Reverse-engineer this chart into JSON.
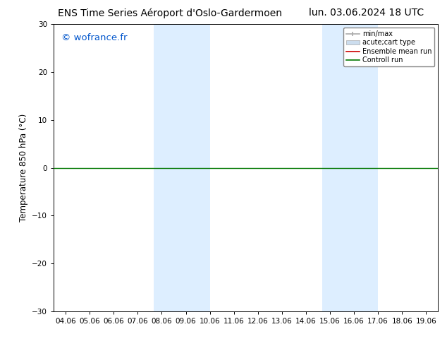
{
  "title_left": "ENS Time Series Aéroport d'Oslo-Gardermoen",
  "title_right": "lun. 03.06.2024 18 UTC",
  "ylabel": "Temperature 850 hPa (°C)",
  "watermark": "© wofrance.fr",
  "watermark_color": "#0055cc",
  "ylim": [
    -30,
    30
  ],
  "yticks": [
    -30,
    -20,
    -10,
    0,
    10,
    20,
    30
  ],
  "xtick_labels": [
    "04.06",
    "05.06",
    "06.06",
    "07.06",
    "08.06",
    "09.06",
    "10.06",
    "11.06",
    "12.06",
    "13.06",
    "14.06",
    "15.06",
    "16.06",
    "17.06",
    "18.06",
    "19.06"
  ],
  "x_numeric": [
    4,
    5,
    6,
    7,
    8,
    9,
    10,
    11,
    12,
    13,
    14,
    15,
    16,
    17,
    18,
    19
  ],
  "x_min": 3.5,
  "x_max": 19.5,
  "shaded_bands": [
    {
      "x_start": 7.67,
      "x_end": 9.0,
      "color": "#ddeeff"
    },
    {
      "x_start": 9.0,
      "x_end": 10.0,
      "color": "#ddeeff"
    },
    {
      "x_start": 14.67,
      "x_end": 16.0,
      "color": "#ddeeff"
    },
    {
      "x_start": 16.0,
      "x_end": 17.0,
      "color": "#ddeeff"
    }
  ],
  "horizontal_line_y": 0,
  "horizontal_line_color": "#007700",
  "background_color": "#ffffff",
  "plot_bg_color": "#ffffff",
  "legend_minmax_color": "#aaaaaa",
  "legend_cart_facecolor": "#ccddee",
  "legend_ens_color": "#cc0000",
  "legend_ctrl_color": "#007700",
  "title_fontsize": 10,
  "tick_fontsize": 7.5,
  "ylabel_fontsize": 8.5,
  "watermark_fontsize": 9.5
}
